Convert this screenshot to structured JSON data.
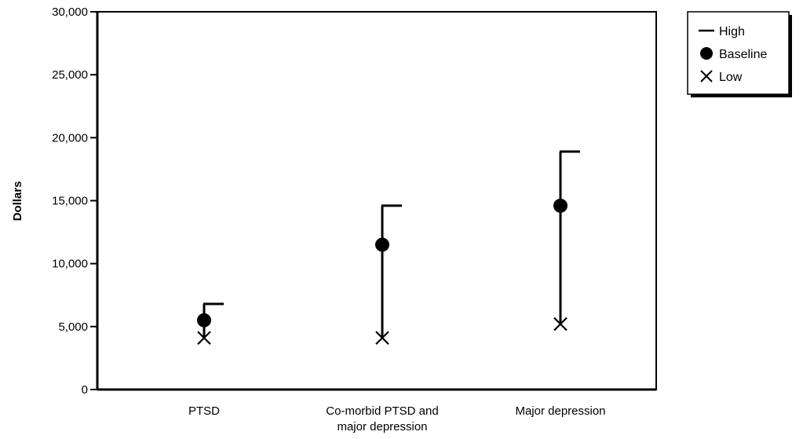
{
  "chart_data": {
    "type": "scatter",
    "ylabel": "Dollars",
    "xlabel": "",
    "ylim": [
      0,
      30000
    ],
    "yticks": [
      {
        "value": 0,
        "label": "0"
      },
      {
        "value": 5000,
        "label": "5,000"
      },
      {
        "value": 10000,
        "label": "10,000"
      },
      {
        "value": 15000,
        "label": "15,000"
      },
      {
        "value": 20000,
        "label": "20,000"
      },
      {
        "value": 25000,
        "label": "25,000"
      },
      {
        "value": 30000,
        "label": "30,000"
      }
    ],
    "categories": [
      {
        "lines": [
          "PTSD"
        ]
      },
      {
        "lines": [
          "Co-morbid PTSD and",
          "major depression"
        ]
      },
      {
        "lines": [
          "Major depression"
        ]
      }
    ],
    "series": [
      {
        "name": "High",
        "marker": "dash",
        "values": [
          6800,
          14600,
          18900
        ]
      },
      {
        "name": "Baseline",
        "marker": "circle",
        "values": [
          5500,
          11500,
          14600
        ]
      },
      {
        "name": "Low",
        "marker": "x",
        "values": [
          4100,
          4100,
          5200
        ]
      }
    ],
    "grid": false,
    "legend_position": "top-right-outside",
    "colors": {
      "ink": "#000000",
      "background": "#ffffff"
    }
  }
}
